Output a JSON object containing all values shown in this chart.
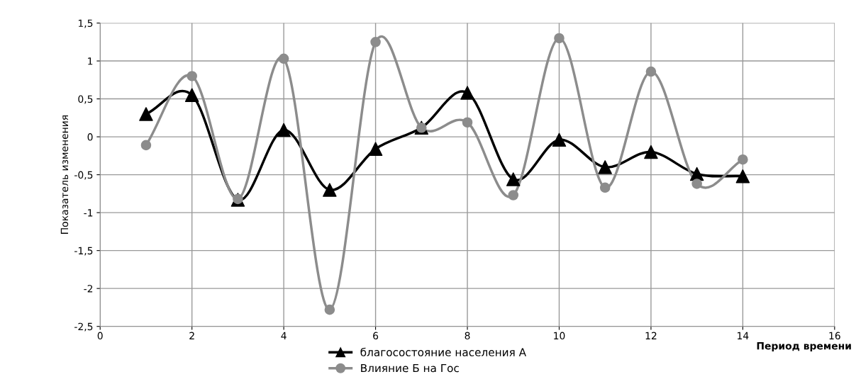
{
  "chart_data": {
    "type": "line",
    "xlabel": "Период времени",
    "ylabel": "Показатель изменения",
    "x": [
      1,
      2,
      3,
      4,
      5,
      6,
      7,
      8,
      9,
      10,
      11,
      12,
      13,
      14
    ],
    "series": [
      {
        "name": "благосостояние населения А",
        "color": "#000000",
        "marker": "triangle",
        "values": [
          0.3,
          0.55,
          -0.83,
          0.09,
          -0.7,
          -0.16,
          0.12,
          0.58,
          -0.56,
          -0.04,
          -0.4,
          -0.2,
          -0.49,
          -0.52
        ]
      },
      {
        "name": "Влияние Б на Гос",
        "color": "#8c8c8c",
        "marker": "circle",
        "values": [
          -0.11,
          0.8,
          -0.82,
          1.03,
          -2.28,
          1.25,
          0.12,
          0.19,
          -0.77,
          1.3,
          -0.67,
          0.86,
          -0.62,
          -0.3
        ]
      }
    ],
    "xlim": [
      0,
      16
    ],
    "xticks": [
      0,
      2,
      4,
      6,
      8,
      10,
      12,
      14,
      16
    ],
    "ylim": [
      -2.5,
      1.5
    ],
    "yticks": [
      {
        "value": -2.5,
        "label": "-2,5"
      },
      {
        "value": -2,
        "label": "-2"
      },
      {
        "value": -1.5,
        "label": "-1,5"
      },
      {
        "value": -1,
        "label": "-1"
      },
      {
        "value": -0.5,
        "label": "-0,5"
      },
      {
        "value": 0,
        "label": "0"
      },
      {
        "value": 0.5,
        "label": "0,5"
      },
      {
        "value": 1,
        "label": "1"
      },
      {
        "value": 1.5,
        "label": "1,5"
      }
    ],
    "grid": true,
    "legend": "bottom",
    "line_style": "solid"
  }
}
